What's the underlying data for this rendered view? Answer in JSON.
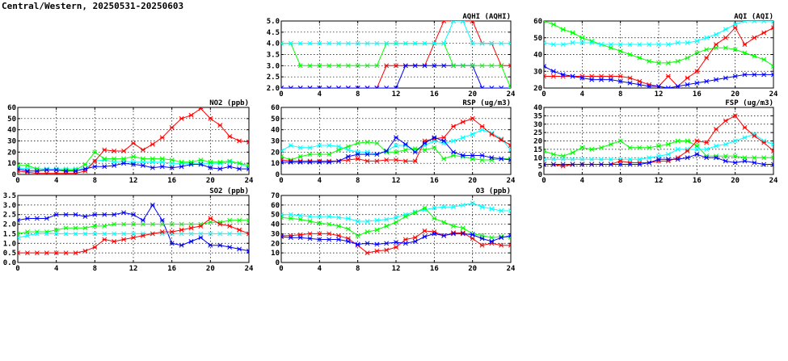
{
  "page": {
    "title": "Central/Western, 20250531-20250603"
  },
  "chart_data": [
    {
      "id": "aqhi",
      "type": "line",
      "title": "AQHI (AQHI)",
      "xlim": [
        0,
        24
      ],
      "ylim": [
        2,
        5
      ],
      "xticks": [
        0,
        4,
        8,
        12,
        16,
        20,
        24
      ],
      "yticks": [
        2.0,
        2.5,
        3.0,
        3.5,
        4.0,
        4.5,
        5.0
      ],
      "ytick_labels": [
        "2.0",
        "2.5",
        "3.0",
        "3.5",
        "4.0",
        "4.5",
        "5.0"
      ],
      "x": [
        0,
        1,
        2,
        3,
        4,
        5,
        6,
        7,
        8,
        9,
        10,
        11,
        12,
        13,
        14,
        15,
        16,
        17,
        18,
        19,
        20,
        21,
        22,
        23,
        24
      ],
      "grid": true,
      "series": [
        {
          "color": "#ff0000",
          "values": [
            2,
            2,
            2,
            2,
            2,
            2,
            2,
            2,
            2,
            2,
            2,
            3,
            3,
            3,
            3,
            3,
            4,
            5,
            5,
            5,
            5,
            4,
            4,
            3,
            3
          ]
        },
        {
          "color": "#0000ff",
          "values": [
            2,
            2,
            2,
            2,
            2,
            2,
            2,
            2,
            2,
            2,
            2,
            2,
            2,
            3,
            3,
            3,
            3,
            3,
            3,
            3,
            3,
            2,
            2,
            2,
            2
          ]
        },
        {
          "color": "#00ff00",
          "values": [
            4,
            4,
            3,
            3,
            3,
            3,
            3,
            3,
            3,
            3,
            3,
            4,
            4,
            4,
            4,
            4,
            4,
            4,
            3,
            3,
            3,
            3,
            3,
            3,
            2
          ]
        },
        {
          "color": "#00ffff",
          "values": [
            4,
            4,
            4,
            4,
            4,
            4,
            4,
            4,
            4,
            4,
            4,
            4,
            4,
            4,
            4,
            4,
            4,
            4,
            5,
            5,
            4,
            4,
            4,
            4,
            4
          ]
        }
      ]
    },
    {
      "id": "aqi",
      "type": "line",
      "title": "AQI (AQI)",
      "xlim": [
        0,
        24
      ],
      "ylim": [
        20,
        60
      ],
      "xticks": [
        0,
        4,
        8,
        12,
        16,
        20,
        24
      ],
      "yticks": [
        20,
        30,
        40,
        50,
        60
      ],
      "ytick_labels": [
        "20",
        "30",
        "40",
        "50",
        "60"
      ],
      "x": [
        0,
        1,
        2,
        3,
        4,
        5,
        6,
        7,
        8,
        9,
        10,
        11,
        12,
        13,
        14,
        15,
        16,
        17,
        18,
        19,
        20,
        21,
        22,
        23,
        24
      ],
      "grid": true,
      "series": [
        {
          "color": "#00ff00",
          "values": [
            60,
            58,
            55,
            53,
            50,
            48,
            46,
            44,
            42,
            40,
            38,
            36,
            35,
            35,
            36,
            38,
            41,
            43,
            44,
            44,
            43,
            41,
            39,
            37,
            33
          ]
        },
        {
          "color": "#00ffff",
          "values": [
            47,
            46,
            46,
            47,
            47,
            47,
            46,
            46,
            46,
            46,
            46,
            46,
            46,
            46,
            47,
            47,
            48,
            50,
            52,
            55,
            58,
            60,
            60,
            60,
            60
          ]
        },
        {
          "color": "#ff0000",
          "values": [
            27,
            27,
            27,
            27,
            27,
            27,
            27,
            27,
            27,
            26,
            24,
            22,
            21,
            27,
            21,
            26,
            30,
            38,
            46,
            50,
            56,
            46,
            50,
            53,
            56
          ]
        },
        {
          "color": "#0000ff",
          "values": [
            33,
            30,
            28,
            27,
            26,
            25,
            25,
            25,
            24,
            23,
            22,
            21,
            21,
            20,
            21,
            22,
            23,
            24,
            25,
            26,
            27,
            28,
            28,
            28,
            28
          ]
        }
      ]
    },
    {
      "id": "no2",
      "type": "line",
      "title": "NO2 (ppb)",
      "xlim": [
        0,
        24
      ],
      "ylim": [
        0,
        60
      ],
      "xticks": [
        0,
        4,
        8,
        12,
        16,
        20,
        24
      ],
      "yticks": [
        0,
        10,
        20,
        30,
        40,
        50,
        60
      ],
      "ytick_labels": [
        "0",
        "10",
        "20",
        "30",
        "40",
        "50",
        "60"
      ],
      "x": [
        0,
        1,
        2,
        3,
        4,
        5,
        6,
        7,
        8,
        9,
        10,
        11,
        12,
        13,
        14,
        15,
        16,
        17,
        18,
        19,
        20,
        21,
        22,
        23,
        24
      ],
      "grid": true,
      "series": [
        {
          "color": "#00ffff",
          "values": [
            6,
            5,
            5,
            5,
            5,
            5,
            5,
            5,
            12,
            13,
            11,
            12,
            11,
            11,
            11,
            11,
            10,
            10,
            10,
            10,
            10,
            10,
            11,
            10,
            6
          ]
        },
        {
          "color": "#00ff00",
          "values": [
            8,
            8,
            5,
            4,
            4,
            4,
            4,
            9,
            20,
            14,
            14,
            14,
            16,
            14,
            14,
            14,
            13,
            11,
            11,
            13,
            11,
            11,
            12,
            10,
            8
          ]
        },
        {
          "color": "#ff0000",
          "values": [
            3,
            2,
            1,
            1,
            1,
            1,
            1,
            3,
            12,
            22,
            21,
            21,
            28,
            22,
            27,
            33,
            42,
            50,
            53,
            59,
            50,
            44,
            34,
            30,
            29
          ]
        },
        {
          "color": "#0000ff",
          "values": [
            5,
            3,
            3,
            4,
            4,
            3,
            3,
            5,
            7,
            7,
            8,
            10,
            9,
            8,
            6,
            7,
            6,
            7,
            9,
            9,
            6,
            5,
            7,
            5,
            5
          ]
        }
      ]
    },
    {
      "id": "rsp",
      "type": "line",
      "title": "RSP (ug/m3)",
      "xlim": [
        0,
        24
      ],
      "ylim": [
        0,
        60
      ],
      "xticks": [
        0,
        4,
        8,
        12,
        16,
        20,
        24
      ],
      "yticks": [
        0,
        10,
        20,
        30,
        40,
        50,
        60
      ],
      "ytick_labels": [
        "0",
        "10",
        "20",
        "30",
        "40",
        "50",
        "60"
      ],
      "x": [
        0,
        1,
        2,
        3,
        4,
        5,
        6,
        7,
        8,
        9,
        10,
        11,
        12,
        13,
        14,
        15,
        16,
        17,
        18,
        19,
        20,
        21,
        22,
        23,
        24
      ],
      "grid": true,
      "series": [
        {
          "color": "#00ffff",
          "values": [
            21,
            26,
            24,
            24,
            26,
            26,
            25,
            22,
            20,
            20,
            18,
            21,
            26,
            26,
            22,
            26,
            30,
            28,
            30,
            33,
            36,
            40,
            37,
            32,
            22
          ]
        },
        {
          "color": "#00ff00",
          "values": [
            16,
            13,
            16,
            18,
            18,
            18,
            22,
            25,
            28,
            29,
            28,
            20,
            20,
            22,
            23,
            22,
            24,
            14,
            17,
            16,
            14,
            13,
            13,
            14,
            14
          ]
        },
        {
          "color": "#ff0000",
          "values": [
            13,
            12,
            12,
            12,
            12,
            12,
            12,
            13,
            14,
            12,
            12,
            13,
            13,
            12,
            12,
            30,
            32,
            33,
            43,
            47,
            50,
            43,
            36,
            31,
            26
          ]
        },
        {
          "color": "#0000ff",
          "values": [
            11,
            11,
            11,
            11,
            11,
            11,
            12,
            16,
            18,
            18,
            18,
            21,
            33,
            27,
            20,
            28,
            33,
            30,
            20,
            17,
            17,
            17,
            15,
            14,
            13
          ]
        }
      ]
    },
    {
      "id": "fsp",
      "type": "line",
      "title": "FSP (ug/m3)",
      "xlim": [
        0,
        24
      ],
      "ylim": [
        0,
        40
      ],
      "xticks": [
        0,
        4,
        8,
        12,
        16,
        20,
        24
      ],
      "yticks": [
        0,
        5,
        10,
        15,
        20,
        25,
        30,
        35,
        40
      ],
      "ytick_labels": [
        "0",
        "5",
        "10",
        "15",
        "20",
        "25",
        "30",
        "35",
        "40"
      ],
      "x": [
        0,
        1,
        2,
        3,
        4,
        5,
        6,
        7,
        8,
        9,
        10,
        11,
        12,
        13,
        14,
        15,
        16,
        17,
        18,
        19,
        20,
        21,
        22,
        23,
        24
      ],
      "grid": true,
      "series": [
        {
          "color": "#00ff00",
          "values": [
            14,
            12,
            11,
            13,
            16,
            15,
            16,
            18,
            20,
            16,
            16,
            16,
            17,
            18,
            20,
            20,
            17,
            11,
            11,
            11,
            11,
            10,
            10,
            10,
            10
          ]
        },
        {
          "color": "#00ffff",
          "values": [
            9,
            9,
            9,
            9,
            9,
            9,
            9,
            9,
            9,
            9,
            9,
            10,
            11,
            12,
            15,
            15,
            15,
            15,
            17,
            18,
            20,
            22,
            24,
            20,
            18
          ]
        },
        {
          "color": "#ff0000",
          "values": [
            6,
            6,
            5,
            6,
            6,
            6,
            6,
            6,
            8,
            7,
            7,
            7,
            8,
            8,
            10,
            14,
            20,
            19,
            27,
            32,
            35,
            28,
            23,
            19,
            14
          ]
        },
        {
          "color": "#0000ff",
          "values": [
            6,
            6,
            6,
            6,
            6,
            6,
            6,
            6,
            6,
            6,
            6,
            7,
            9,
            9,
            9,
            10,
            12,
            10,
            10,
            8,
            7,
            8,
            7,
            6,
            6
          ]
        }
      ]
    },
    {
      "id": "so2",
      "type": "line",
      "title": "SO2 (ppb)",
      "xlim": [
        0,
        24
      ],
      "ylim": [
        0,
        3.5
      ],
      "xticks": [
        0,
        4,
        8,
        12,
        16,
        20,
        24
      ],
      "yticks": [
        0,
        0.5,
        1.0,
        1.5,
        2.0,
        2.5,
        3.0,
        3.5
      ],
      "ytick_labels": [
        "0.0",
        "0.5",
        "1.0",
        "1.5",
        "2.0",
        "2.5",
        "3.0",
        "3.5"
      ],
      "x": [
        0,
        1,
        2,
        3,
        4,
        5,
        6,
        7,
        8,
        9,
        10,
        11,
        12,
        13,
        14,
        15,
        16,
        17,
        18,
        19,
        20,
        21,
        22,
        23,
        24
      ],
      "grid": true,
      "series": [
        {
          "color": "#0000ff",
          "values": [
            2.2,
            2.3,
            2.3,
            2.3,
            2.5,
            2.5,
            2.5,
            2.4,
            2.5,
            2.5,
            2.5,
            2.6,
            2.5,
            2.2,
            3.0,
            2.2,
            1.0,
            0.9,
            1.1,
            1.3,
            0.9,
            0.9,
            0.8,
            0.7,
            0.6
          ]
        },
        {
          "color": "#00ff00",
          "values": [
            1.5,
            1.6,
            1.6,
            1.6,
            1.7,
            1.8,
            1.8,
            1.8,
            1.9,
            1.9,
            2.0,
            2.0,
            2.0,
            2.0,
            2.0,
            2.0,
            2.0,
            2.0,
            2.0,
            2.0,
            2.1,
            2.1,
            2.2,
            2.2,
            2.2
          ]
        },
        {
          "color": "#00ffff",
          "values": [
            1.3,
            1.4,
            1.5,
            1.5,
            1.5,
            1.5,
            1.5,
            1.5,
            1.5,
            1.5,
            1.5,
            1.5,
            1.5,
            1.5,
            1.5,
            1.5,
            1.5,
            1.5,
            1.5,
            1.5,
            1.5,
            1.5,
            1.5,
            1.5,
            1.5
          ]
        },
        {
          "color": "#ff0000",
          "values": [
            0.5,
            0.5,
            0.5,
            0.5,
            0.5,
            0.5,
            0.5,
            0.6,
            0.8,
            1.2,
            1.1,
            1.2,
            1.3,
            1.4,
            1.5,
            1.6,
            1.6,
            1.7,
            1.8,
            1.9,
            2.3,
            2.0,
            1.9,
            1.7,
            1.5
          ]
        }
      ]
    },
    {
      "id": "o3",
      "type": "line",
      "title": "O3 (ppb)",
      "xlim": [
        0,
        24
      ],
      "ylim": [
        0,
        70
      ],
      "xticks": [
        0,
        4,
        8,
        12,
        16,
        20,
        24
      ],
      "yticks": [
        0,
        10,
        20,
        30,
        40,
        50,
        60,
        70
      ],
      "ytick_labels": [
        "0",
        "10",
        "20",
        "30",
        "40",
        "50",
        "60",
        "70"
      ],
      "x": [
        0,
        1,
        2,
        3,
        4,
        5,
        6,
        7,
        8,
        9,
        10,
        11,
        12,
        13,
        14,
        15,
        16,
        17,
        18,
        19,
        20,
        21,
        22,
        23,
        24
      ],
      "grid": true,
      "series": [
        {
          "color": "#00ffff",
          "values": [
            50,
            50,
            49,
            48,
            48,
            48,
            47,
            46,
            43,
            43,
            44,
            45,
            47,
            50,
            53,
            55,
            57,
            58,
            58,
            60,
            62,
            58,
            56,
            54,
            54
          ]
        },
        {
          "color": "#00ff00",
          "values": [
            47,
            46,
            45,
            43,
            41,
            40,
            38,
            35,
            28,
            32,
            34,
            38,
            42,
            48,
            52,
            57,
            46,
            42,
            38,
            36,
            30,
            28,
            26,
            27,
            26
          ]
        },
        {
          "color": "#ff0000",
          "values": [
            28,
            28,
            29,
            30,
            30,
            30,
            28,
            25,
            18,
            10,
            12,
            13,
            16,
            24,
            26,
            33,
            32,
            28,
            31,
            31,
            25,
            18,
            20,
            18,
            18
          ]
        },
        {
          "color": "#0000ff",
          "values": [
            27,
            26,
            26,
            25,
            24,
            24,
            24,
            22,
            19,
            20,
            19,
            20,
            21,
            20,
            22,
            27,
            30,
            28,
            30,
            30,
            29,
            25,
            22,
            26,
            28
          ]
        }
      ]
    }
  ]
}
